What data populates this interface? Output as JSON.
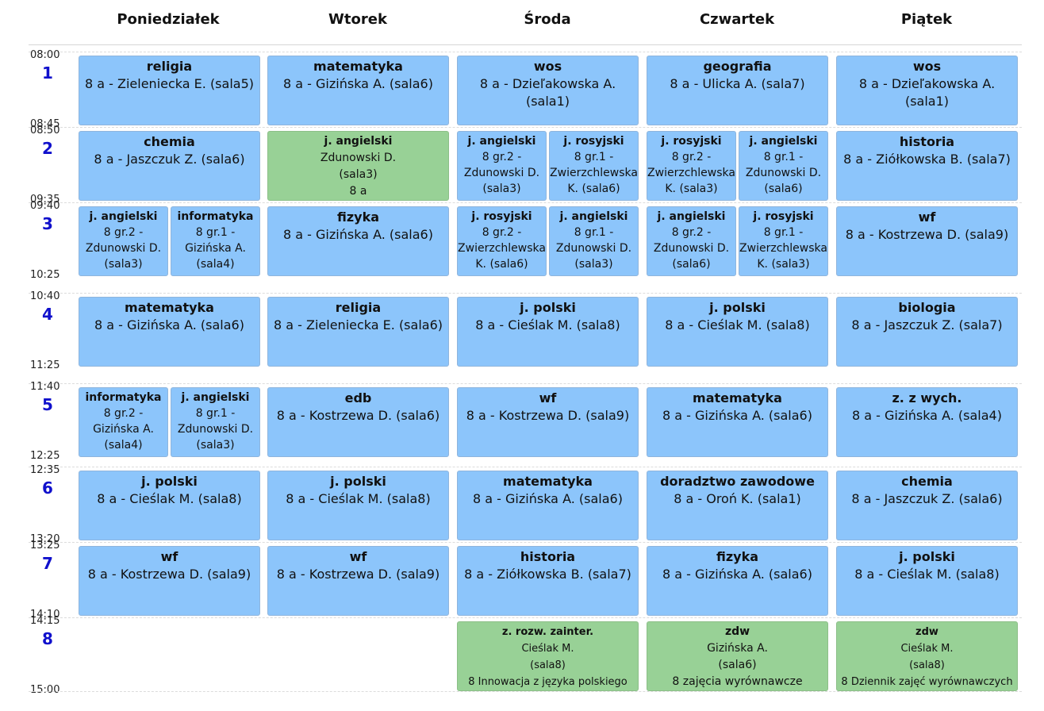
{
  "days": [
    "Poniedziałek",
    "Wtorek",
    "Środa",
    "Czwartek",
    "Piątek"
  ],
  "periods": [
    {
      "num": "1",
      "start": "08:00",
      "end": "08:45"
    },
    {
      "num": "2",
      "start": "08:50",
      "end": "09:35"
    },
    {
      "num": "3",
      "start": "09:40",
      "end": "10:25"
    },
    {
      "num": "4",
      "start": "10:40",
      "end": "11:25"
    },
    {
      "num": "5",
      "start": "11:40",
      "end": "12:25"
    },
    {
      "num": "6",
      "start": "12:35",
      "end": "13:20"
    },
    {
      "num": "7",
      "start": "13:25",
      "end": "14:10"
    },
    {
      "num": "8",
      "start": "14:15",
      "end": "15:00"
    }
  ],
  "lessons": [
    {
      "day": 0,
      "period": 0,
      "span": "full",
      "color": "blue",
      "subject": "religia",
      "lines": [
        "8 a - Zieleniecka E. (sala5)"
      ]
    },
    {
      "day": 1,
      "period": 0,
      "span": "full",
      "color": "blue",
      "subject": "matematyka",
      "lines": [
        "8 a - Gizińska A. (sala6)"
      ]
    },
    {
      "day": 2,
      "period": 0,
      "span": "full",
      "color": "blue",
      "subject": "wos",
      "lines": [
        "8 a - Dzieľakowska A. (sala1)"
      ]
    },
    {
      "day": 3,
      "period": 0,
      "span": "full",
      "color": "blue",
      "subject": "geografia",
      "lines": [
        "8 a - Ulicka A. (sala7)"
      ]
    },
    {
      "day": 4,
      "period": 0,
      "span": "full",
      "color": "blue",
      "subject": "wos",
      "lines": [
        "8 a - Dzieľakowska A. (sala1)"
      ]
    },
    {
      "day": 0,
      "period": 1,
      "span": "full",
      "color": "blue",
      "subject": "chemia",
      "lines": [
        "8 a - Jaszczuk Z. (sala6)"
      ]
    },
    {
      "day": 1,
      "period": 1,
      "span": "full",
      "color": "green",
      "subject": "j. angielski",
      "lines": [
        "Zdunowski D.",
        "(sala3)",
        "8 a"
      ]
    },
    {
      "day": 2,
      "period": 1,
      "span": "left",
      "color": "blue",
      "subject": "j. angielski",
      "lines": [
        "8 gr.2 -",
        "Zdunowski D.",
        "(sala3)"
      ]
    },
    {
      "day": 2,
      "period": 1,
      "span": "right",
      "color": "blue",
      "subject": "j. rosyjski",
      "lines": [
        "8 gr.1 -",
        "Zwierzchlewska",
        "K. (sala6)"
      ]
    },
    {
      "day": 3,
      "period": 1,
      "span": "left",
      "color": "blue",
      "subject": "j. rosyjski",
      "lines": [
        "8 gr.2 -",
        "Zwierzchlewska",
        "K. (sala3)"
      ]
    },
    {
      "day": 3,
      "period": 1,
      "span": "right",
      "color": "blue",
      "subject": "j. angielski",
      "lines": [
        "8 gr.1 -",
        "Zdunowski D.",
        "(sala6)"
      ]
    },
    {
      "day": 4,
      "period": 1,
      "span": "full",
      "color": "blue",
      "subject": "historia",
      "lines": [
        "8 a - Ziółkowska B. (sala7)"
      ]
    },
    {
      "day": 0,
      "period": 2,
      "span": "left",
      "color": "blue",
      "subject": "j. angielski",
      "lines": [
        "8 gr.2 -",
        "Zdunowski D.",
        "(sala3)"
      ]
    },
    {
      "day": 0,
      "period": 2,
      "span": "right",
      "color": "blue",
      "subject": "informatyka",
      "lines": [
        "8 gr.1 -",
        "Gizińska A.",
        "(sala4)"
      ]
    },
    {
      "day": 1,
      "period": 2,
      "span": "full",
      "color": "blue",
      "subject": "fizyka",
      "lines": [
        "8 a - Gizińska A. (sala6)"
      ]
    },
    {
      "day": 2,
      "period": 2,
      "span": "left",
      "color": "blue",
      "subject": "j. rosyjski",
      "lines": [
        "8 gr.2 -",
        "Zwierzchlewska",
        "K. (sala6)"
      ]
    },
    {
      "day": 2,
      "period": 2,
      "span": "right",
      "color": "blue",
      "subject": "j. angielski",
      "lines": [
        "8 gr.1 -",
        "Zdunowski D.",
        "(sala3)"
      ]
    },
    {
      "day": 3,
      "period": 2,
      "span": "left",
      "color": "blue",
      "subject": "j. angielski",
      "lines": [
        "8 gr.2 -",
        "Zdunowski D.",
        "(sala6)"
      ]
    },
    {
      "day": 3,
      "period": 2,
      "span": "right",
      "color": "blue",
      "subject": "j. rosyjski",
      "lines": [
        "8 gr.1 -",
        "Zwierzchlewska",
        "K. (sala3)"
      ]
    },
    {
      "day": 4,
      "period": 2,
      "span": "full",
      "color": "blue",
      "subject": "wf",
      "lines": [
        "8 a - Kostrzewa D. (sala9)"
      ]
    },
    {
      "day": 0,
      "period": 3,
      "span": "full",
      "color": "blue",
      "subject": "matematyka",
      "lines": [
        "8 a - Gizińska A. (sala6)"
      ]
    },
    {
      "day": 1,
      "period": 3,
      "span": "full",
      "color": "blue",
      "subject": "religia",
      "lines": [
        "8 a - Zieleniecka E. (sala6)"
      ]
    },
    {
      "day": 2,
      "period": 3,
      "span": "full",
      "color": "blue",
      "subject": "j. polski",
      "lines": [
        "8 a - Cieślak M. (sala8)"
      ]
    },
    {
      "day": 3,
      "period": 3,
      "span": "full",
      "color": "blue",
      "subject": "j. polski",
      "lines": [
        "8 a - Cieślak M. (sala8)"
      ]
    },
    {
      "day": 4,
      "period": 3,
      "span": "full",
      "color": "blue",
      "subject": "biologia",
      "lines": [
        "8 a - Jaszczuk Z. (sala7)"
      ]
    },
    {
      "day": 0,
      "period": 4,
      "span": "left",
      "color": "blue",
      "subject": "informatyka",
      "lines": [
        "8 gr.2 -",
        "Gizińska A.",
        "(sala4)"
      ]
    },
    {
      "day": 0,
      "period": 4,
      "span": "right",
      "color": "blue",
      "subject": "j. angielski",
      "lines": [
        "8 gr.1 -",
        "Zdunowski D.",
        "(sala3)"
      ]
    },
    {
      "day": 1,
      "period": 4,
      "span": "full",
      "color": "blue",
      "subject": "edb",
      "lines": [
        "8 a - Kostrzewa D. (sala6)"
      ]
    },
    {
      "day": 2,
      "period": 4,
      "span": "full",
      "color": "blue",
      "subject": "wf",
      "lines": [
        "8 a - Kostrzewa D. (sala9)"
      ]
    },
    {
      "day": 3,
      "period": 4,
      "span": "full",
      "color": "blue",
      "subject": "matematyka",
      "lines": [
        "8 a - Gizińska A. (sala6)"
      ]
    },
    {
      "day": 4,
      "period": 4,
      "span": "full",
      "color": "blue",
      "subject": "z. z wych.",
      "lines": [
        "8 a - Gizińska A. (sala4)"
      ]
    },
    {
      "day": 0,
      "period": 5,
      "span": "full",
      "color": "blue",
      "subject": "j. polski",
      "lines": [
        "8 a - Cieślak M. (sala8)"
      ]
    },
    {
      "day": 1,
      "period": 5,
      "span": "full",
      "color": "blue",
      "subject": "j. polski",
      "lines": [
        "8 a - Cieślak M. (sala8)"
      ]
    },
    {
      "day": 2,
      "period": 5,
      "span": "full",
      "color": "blue",
      "subject": "matematyka",
      "lines": [
        "8 a - Gizińska A. (sala6)"
      ]
    },
    {
      "day": 3,
      "period": 5,
      "span": "full",
      "color": "blue",
      "subject": "doradztwo zawodowe",
      "lines": [
        "8 a - Oroń K. (sala1)"
      ]
    },
    {
      "day": 4,
      "period": 5,
      "span": "full",
      "color": "blue",
      "subject": "chemia",
      "lines": [
        "8 a - Jaszczuk Z. (sala6)"
      ]
    },
    {
      "day": 0,
      "period": 6,
      "span": "full",
      "color": "blue",
      "subject": "wf",
      "lines": [
        "8 a - Kostrzewa D. (sala9)"
      ]
    },
    {
      "day": 1,
      "period": 6,
      "span": "full",
      "color": "blue",
      "subject": "wf",
      "lines": [
        "8 a - Kostrzewa D. (sala9)"
      ]
    },
    {
      "day": 2,
      "period": 6,
      "span": "full",
      "color": "blue",
      "subject": "historia",
      "lines": [
        "8 a - Ziółkowska B. (sala7)"
      ]
    },
    {
      "day": 3,
      "period": 6,
      "span": "full",
      "color": "blue",
      "subject": "fizyka",
      "lines": [
        "8 a - Gizińska A. (sala6)"
      ]
    },
    {
      "day": 4,
      "period": 6,
      "span": "full",
      "color": "blue",
      "subject": "j. polski",
      "lines": [
        "8 a - Cieślak M. (sala8)"
      ]
    },
    {
      "day": 2,
      "period": 7,
      "span": "full",
      "color": "green",
      "subject": "z. rozw. zainter.",
      "lines": [
        "Cieślak M.",
        "(sala8)",
        "8 Innowacja z języka polskiego"
      ]
    },
    {
      "day": 3,
      "period": 7,
      "span": "full",
      "color": "green",
      "subject": "zdw",
      "lines": [
        "Gizińska A.",
        "(sala6)",
        "8 zajęcia wyrównawcze"
      ]
    },
    {
      "day": 4,
      "period": 7,
      "span": "full",
      "color": "green",
      "subject": "zdw",
      "lines": [
        "Cieślak M.",
        "(sala8)",
        "8 Dziennik zajęć wyrównawczych"
      ]
    }
  ],
  "colors": {
    "blue": "#8cc5fb",
    "green": "#98d196",
    "period_number": "#1010cc"
  }
}
